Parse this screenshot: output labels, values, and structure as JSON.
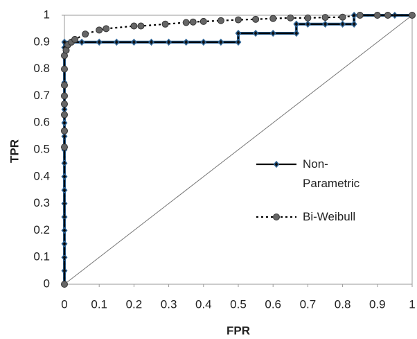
{
  "chart_data": {
    "type": "line",
    "x_label": "FPR",
    "y_label": "TPR",
    "xlim": [
      0,
      1
    ],
    "ylim": [
      0,
      1
    ],
    "xticks": [
      0,
      0.1,
      0.2,
      0.3,
      0.4,
      0.5,
      0.6,
      0.7,
      0.8,
      0.9,
      1
    ],
    "yticks": [
      0,
      0.1,
      0.2,
      0.3,
      0.4,
      0.5,
      0.6,
      0.7,
      0.8,
      0.9,
      1
    ],
    "grid": false,
    "series": [
      {
        "name": "Non-Parametric",
        "color": "#000000",
        "marker_color": "#2e6496",
        "marker": "diamond",
        "line_style": "solid",
        "x": [
          0,
          0,
          0,
          0,
          0,
          0,
          0,
          0,
          0,
          0,
          0,
          0,
          0,
          0,
          0,
          0,
          0,
          0,
          0,
          0,
          0.05,
          0.1,
          0.15,
          0.2,
          0.25,
          0.3,
          0.35,
          0.4,
          0.45,
          0.5,
          0.5,
          0.55,
          0.6,
          0.667,
          0.667,
          0.7,
          0.75,
          0.8,
          0.833,
          0.833,
          0.9,
          0.95,
          1
        ],
        "values": [
          0,
          0.05,
          0.1,
          0.15,
          0.2,
          0.25,
          0.3,
          0.35,
          0.4,
          0.45,
          0.5,
          0.55,
          0.6,
          0.65,
          0.7,
          0.75,
          0.8,
          0.85,
          0.88,
          0.9,
          0.9,
          0.9,
          0.9,
          0.9,
          0.9,
          0.9,
          0.9,
          0.9,
          0.9,
          0.9,
          0.933,
          0.933,
          0.933,
          0.933,
          0.967,
          0.967,
          0.967,
          0.967,
          0.967,
          1,
          1,
          1,
          1
        ]
      },
      {
        "name": "Bi-Weibull",
        "color": "#000000",
        "marker_color": "#666666",
        "marker": "circle",
        "line_style": "dotted",
        "x": [
          0,
          0,
          0,
          0,
          0,
          0,
          0,
          0,
          0,
          0.005,
          0.01,
          0.02,
          0.03,
          0.06,
          0.1,
          0.12,
          0.2,
          0.22,
          0.29,
          0.35,
          0.37,
          0.4,
          0.45,
          0.5,
          0.55,
          0.6,
          0.65,
          0.7,
          0.75,
          0.8,
          0.85,
          0.9,
          0.93,
          1
        ],
        "values": [
          0,
          0.51,
          0.57,
          0.63,
          0.67,
          0.7,
          0.74,
          0.8,
          0.85,
          0.87,
          0.89,
          0.9,
          0.91,
          0.93,
          0.945,
          0.95,
          0.96,
          0.96,
          0.967,
          0.973,
          0.975,
          0.977,
          0.98,
          0.983,
          0.985,
          0.988,
          0.99,
          0.99,
          0.992,
          0.993,
          1,
          1,
          1,
          1
        ]
      }
    ],
    "legend": "right"
  }
}
